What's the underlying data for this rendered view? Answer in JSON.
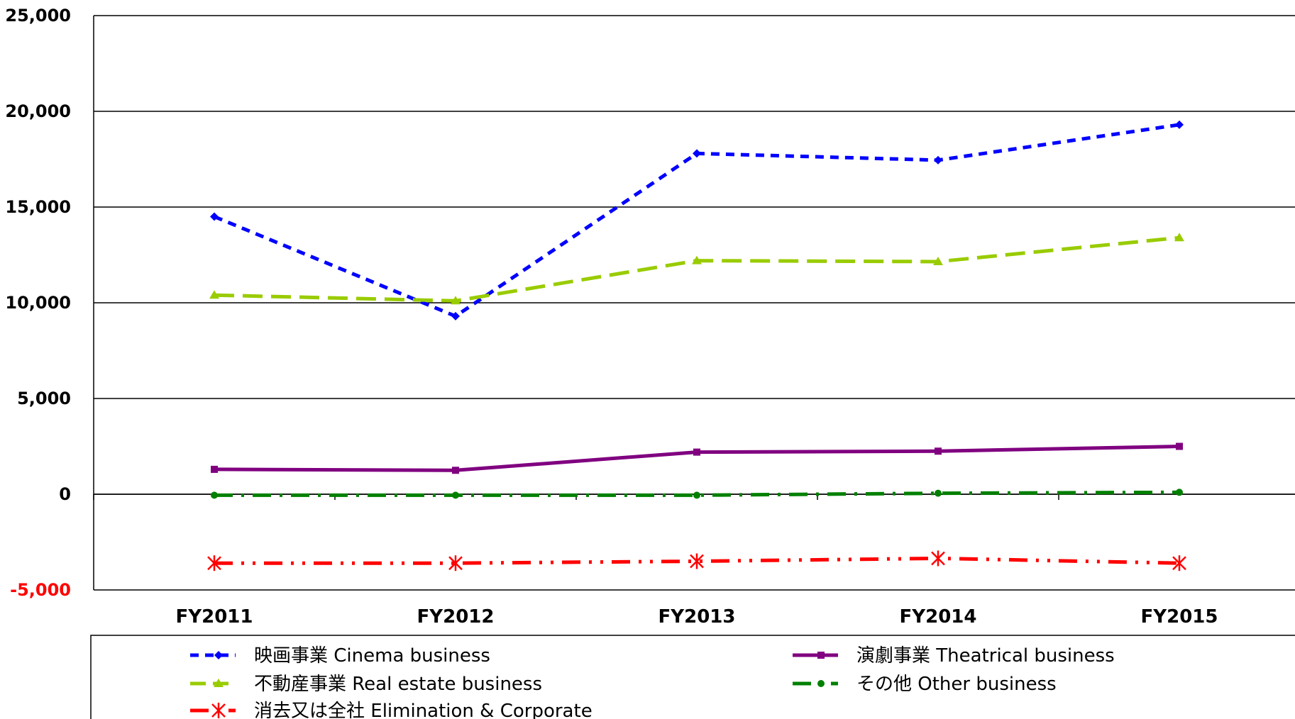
{
  "chart_data": {
    "type": "line",
    "categories": [
      "FY2011",
      "FY2012",
      "FY2013",
      "FY2014",
      "FY2015"
    ],
    "ylim": [
      -5000,
      25000
    ],
    "yticks": [
      25000,
      20000,
      15000,
      10000,
      5000,
      0,
      -5000
    ],
    "ytick_labels": [
      "25,000",
      "20,000",
      "15,000",
      "10,000",
      "5,000",
      "0",
      "-5,000"
    ],
    "negative_tick_color": "#ff0000",
    "grid": true,
    "legend_position": "bottom",
    "series": [
      {
        "name": "映画事業 Cinema business",
        "color": "#0000ff",
        "dash": "dash",
        "marker": "diamond",
        "values": [
          14500,
          9300,
          17800,
          17450,
          19300
        ]
      },
      {
        "name": "不動産事業 Real estate business",
        "color": "#99cc00",
        "dash": "longdash",
        "marker": "triangle",
        "values": [
          10400,
          10100,
          12200,
          12150,
          13400
        ]
      },
      {
        "name": "演劇事業 Theatrical business",
        "color": "#800080",
        "dash": "solid",
        "marker": "square",
        "values": [
          1300,
          1250,
          2200,
          2250,
          2500
        ]
      },
      {
        "name": "その他 Other business",
        "color": "#008000",
        "dash": "dashdot",
        "marker": "circle",
        "values": [
          -50,
          -50,
          -50,
          50,
          100
        ]
      },
      {
        "name": "消去又は全社 Elimination & Corporate",
        "color": "#ff0000",
        "dash": "dashdotdot",
        "marker": "star",
        "values": [
          -3600,
          -3600,
          -3500,
          -3350,
          -3600
        ]
      }
    ]
  }
}
